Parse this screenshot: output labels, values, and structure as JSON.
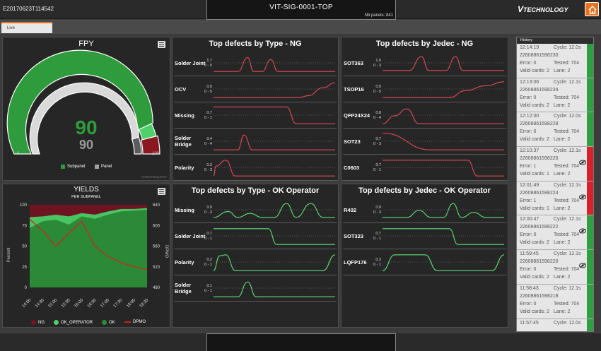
{
  "header": {
    "station_id": "E20170623T114542",
    "title": "VIT-SIG-0001-TOP",
    "nb_panels": "Nb panels: 841",
    "brand_v": "V",
    "brand_text": "TECHNOLOGY"
  },
  "tabs": [
    {
      "label": "Live"
    }
  ],
  "fpy": {
    "title": "FPY",
    "value_subpanel": "90",
    "value_panel": "90",
    "min": "0",
    "max": "100",
    "subpanel_fraction": 0.9,
    "panel_fraction": 0.9,
    "legend": [
      "Subpanel",
      "Panel"
    ],
    "watermark": "VITECHNOLOGY",
    "colors": {
      "subpanel": "#2e9c3c",
      "panel": "#a0a0a0",
      "red": "#8b1820",
      "lightgreen": "#4ed06a"
    }
  },
  "yields": {
    "title": "YIELDS",
    "subtitle": "PER SUBPANEL",
    "ylabel_left": "Percent",
    "ylabel_right": "DPMO",
    "left_ticks": [
      "100",
      "75",
      "50",
      "25",
      "0"
    ],
    "right_ticks": [
      "640",
      "600",
      "560",
      "520",
      "480"
    ],
    "legend": [
      "NG",
      "OK_OPERATOR",
      "OK",
      "DPMO"
    ]
  },
  "chart_data": [
    {
      "type": "area",
      "title": "YIELDS",
      "subtitle": "PER SUBPANEL",
      "categories": [
        "14:00",
        "14:30",
        "15:00",
        "15:30",
        "16:00",
        "16:30",
        "17:00",
        "17:30",
        "18:00",
        "18:30"
      ],
      "ylabel": "Percent",
      "ylim": [
        0,
        100
      ],
      "y2label": "DPMO",
      "y2lim": [
        480,
        640
      ],
      "series": [
        {
          "name": "OK",
          "values": [
            72,
            80,
            82,
            76,
            86,
            83,
            88,
            92,
            93,
            94
          ]
        },
        {
          "name": "OK_OPERATOR",
          "values": [
            85,
            86,
            88,
            86,
            90,
            88,
            92,
            95,
            95,
            96
          ]
        },
        {
          "name": "NG",
          "values": [
            100,
            100,
            100,
            100,
            100,
            100,
            100,
            100,
            100,
            100
          ]
        },
        {
          "name": "DPMO",
          "axis": "right",
          "values": [
            612,
            590,
            560,
            585,
            608,
            560,
            540,
            528,
            520,
            515
          ]
        }
      ]
    }
  ],
  "ng_type": {
    "title": "Top defects by Type - NG",
    "rows": [
      {
        "label": "Solder Joint",
        "top": "1.7",
        "range": "0 - 5"
      },
      {
        "label": "OCV",
        "top": "0.9",
        "range": "0 - 5"
      },
      {
        "label": "Missing",
        "top": "0.7",
        "range": "0 - 1"
      },
      {
        "label": "Solder Bridge",
        "top": "0.4",
        "range": "0 - 4"
      },
      {
        "label": "Polarity",
        "top": "0.3",
        "range": "0 - 3"
      }
    ]
  },
  "ng_jedec": {
    "title": "Top defects by Jedec - NG",
    "rows": [
      {
        "label": "SOT363",
        "top": "1.0",
        "range": "0 - 3"
      },
      {
        "label": "TSOP16",
        "top": "0.9",
        "range": "0 - 5"
      },
      {
        "label": "QFP24X24",
        "top": "0.8",
        "range": "0 - 4"
      },
      {
        "label": "SOT23",
        "top": "0.7",
        "range": "0 - 3"
      },
      {
        "label": "C0603",
        "top": "0.7",
        "range": "0 - 1"
      }
    ]
  },
  "ok_type": {
    "title": "Top defects by Type - OK Operator",
    "rows": [
      {
        "label": "Missing",
        "top": "0.9",
        "range": "0 - 3"
      },
      {
        "label": "Solder Joint",
        "top": "0.7",
        "range": "0 - 1"
      },
      {
        "label": "Polarity",
        "top": "0.2",
        "range": "0 - 1"
      },
      {
        "label": "Solder Bridge",
        "top": "0.1",
        "range": "0 - 1"
      }
    ]
  },
  "ok_jedec": {
    "title": "Top defects by Jedec - OK Operator",
    "rows": [
      {
        "label": "R402",
        "top": "0.9",
        "range": "0 - 3"
      },
      {
        "label": "SOT323",
        "top": "0.7",
        "range": "0 - 1"
      },
      {
        "label": "LQFP176",
        "top": "0.3",
        "range": "0 - 1"
      }
    ]
  },
  "history": {
    "title": "History",
    "entries": [
      {
        "time": "12:14:19",
        "cycle": "Cycle: 12.0s",
        "serial": "22608861598230",
        "error": "Error: 0",
        "tested": "Tested: 704",
        "valid": "Valid cards: 2",
        "lane": "Lane: 2",
        "status": "ok"
      },
      {
        "time": "12:13:06",
        "cycle": "Cycle: 12.1s",
        "serial": "22608861598234",
        "error": "Error: 0",
        "tested": "Tested: 704",
        "valid": "Valid cards: 2",
        "lane": "Lane: 2",
        "status": "ok"
      },
      {
        "time": "12:12:00",
        "cycle": "Cycle: 12.0s",
        "serial": "22608861598228",
        "error": "Error: 0",
        "tested": "Tested: 704",
        "valid": "Valid cards: 2",
        "lane": "Lane: 2",
        "status": "ok"
      },
      {
        "time": "12:10:37",
        "cycle": "Cycle: 12.1s",
        "serial": "22608861598226",
        "error": "Error: 1",
        "tested": "Tested: 704",
        "valid": "Valid cards: 1",
        "lane": "Lane: 2",
        "status": "ng"
      },
      {
        "time": "12:01:49",
        "cycle": "Cycle: 12.1s",
        "serial": "22608861598224",
        "error": "Error: 1",
        "tested": "Tested: 704",
        "valid": "Valid cards: 1",
        "lane": "Lane: 2",
        "status": "ng"
      },
      {
        "time": "12:00:47",
        "cycle": "Cycle: 12.1s",
        "serial": "22608861598222",
        "error": "Error: 0",
        "tested": "Tested: 704",
        "valid": "Valid cards: 2",
        "lane": "Lane: 2",
        "status": "ok_op"
      },
      {
        "time": "11:59:45",
        "cycle": "Cycle: 12.1s",
        "serial": "22608861598220",
        "error": "Error: 0",
        "tested": "Tested: 704",
        "valid": "Valid cards: 2",
        "lane": "Lane: 2",
        "status": "ok_op"
      },
      {
        "time": "11:58:43",
        "cycle": "Cycle: 12.1s",
        "serial": "22608861598218",
        "error": "Error: 0",
        "tested": "Tested: 704",
        "valid": "Valid cards: 2",
        "lane": "Lane: 2",
        "status": "ok"
      },
      {
        "time": "11:57:45",
        "cycle": "Cycle: 12.0s",
        "serial": "",
        "error": "",
        "tested": "",
        "valid": "",
        "lane": "",
        "status": "ok"
      }
    ]
  }
}
